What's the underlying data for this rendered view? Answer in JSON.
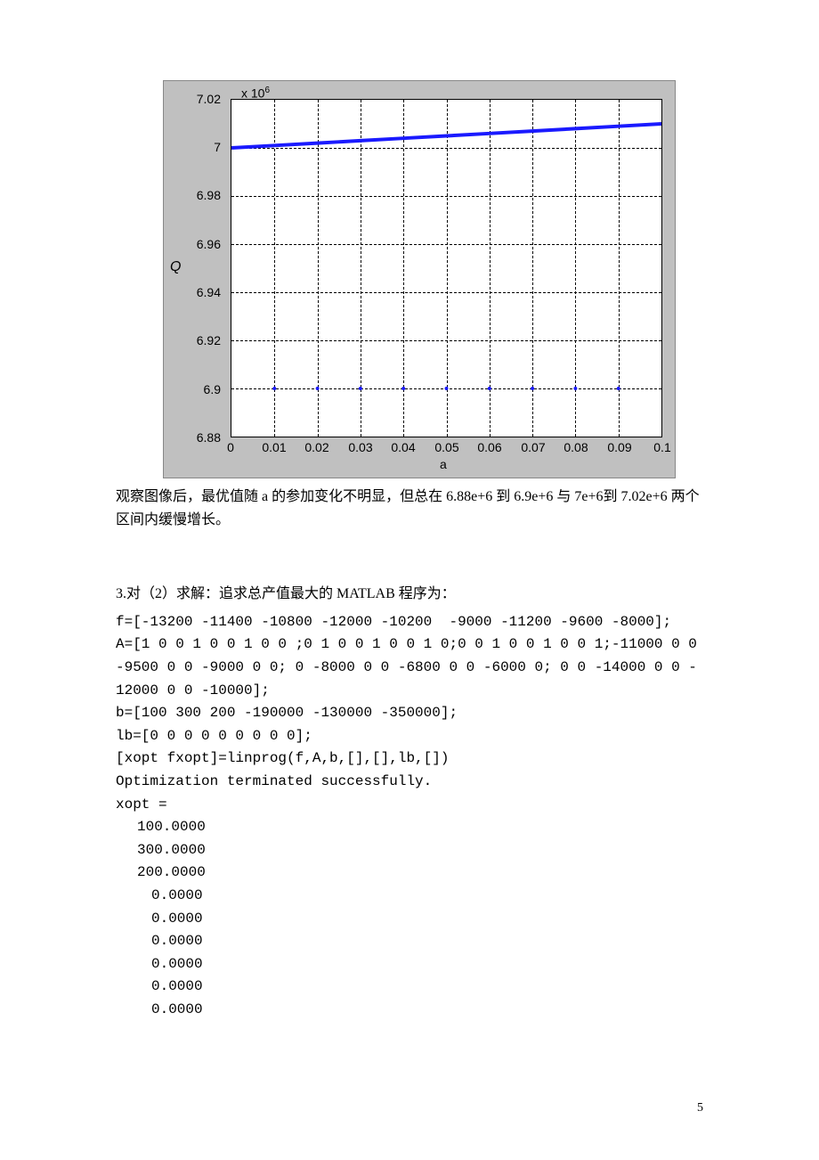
{
  "chart": {
    "type": "line",
    "background_color": "#c0c0c0",
    "plot_background_color": "#ffffff",
    "border_color": "#000000",
    "grid_color": "#000000",
    "grid_style": "dashed",
    "exponent_label": "x 10",
    "exponent_sup": "6",
    "ylabel": "Q",
    "xlabel": "a",
    "xlim": [
      0,
      0.1
    ],
    "ylim": [
      6.88,
      7.02
    ],
    "xticks": [
      "0",
      "0.01",
      "0.02",
      "0.03",
      "0.04",
      "0.05",
      "0.06",
      "0.07",
      "0.08",
      "0.09",
      "0.1"
    ],
    "yticks": [
      "6.88",
      "6.9",
      "6.92",
      "6.94",
      "6.96",
      "6.98",
      "7",
      "7.02"
    ],
    "label_fontsize": 14,
    "series1": {
      "color": "#1a1aff",
      "line_width": 4,
      "x": [
        0,
        0.01,
        0.02,
        0.03,
        0.04,
        0.05,
        0.06,
        0.07,
        0.08,
        0.09,
        0.1
      ],
      "y": [
        7.0,
        7.001,
        7.002,
        7.003,
        7.004,
        7.005,
        7.006,
        7.007,
        7.008,
        7.009,
        7.01
      ]
    },
    "series2": {
      "color": "#1a1aff",
      "marker": "dot",
      "marker_size": 2,
      "x": [
        0.01,
        0.02,
        0.03,
        0.04,
        0.05,
        0.06,
        0.07,
        0.08,
        0.09
      ],
      "y": [
        6.9,
        6.9,
        6.9,
        6.9,
        6.9,
        6.9,
        6.9,
        6.9,
        6.9
      ]
    }
  },
  "text": {
    "para1": "观察图像后，最优值随 a 的参加变化不明显，但总在 6.88e+6 到 6.9e+6 与 7e+6到 7.02e+6 两个区间内缓慢增长。",
    "para2": "3.对（2）求解：追求总产值最大的 MATLAB 程序为："
  },
  "code": {
    "line1": "f=[-13200 -11400 -10800 -12000 -10200  -9000 -11200 -9600 -8000];",
    "line2": "A=[1 0 0 1 0 0 1 0 0 ;0 1 0 0 1 0 0 1 0;0 0 1 0 0 1 0 0 1;-11000 0 0 -9500 0 0 -9000 0 0; 0 -8000 0 0 -6800 0 0 -6000 0; 0 0 -14000 0 0 -12000 0 0 -10000];",
    "line3": "b=[100 300 200 -190000 -130000 -350000];",
    "line4": "lb=[0 0 0 0 0 0 0 0 0];",
    "line5": "[xopt fxopt]=linprog(f,A,b,[],[],lb,[])",
    "line6": "Optimization terminated successfully.",
    "line7": "xopt =",
    "results_a": [
      "100.0000",
      "300.0000",
      "200.0000"
    ],
    "results_b": [
      "0.0000",
      "0.0000",
      "0.0000",
      "0.0000",
      "0.0000",
      "0.0000"
    ]
  },
  "page_number": "5"
}
